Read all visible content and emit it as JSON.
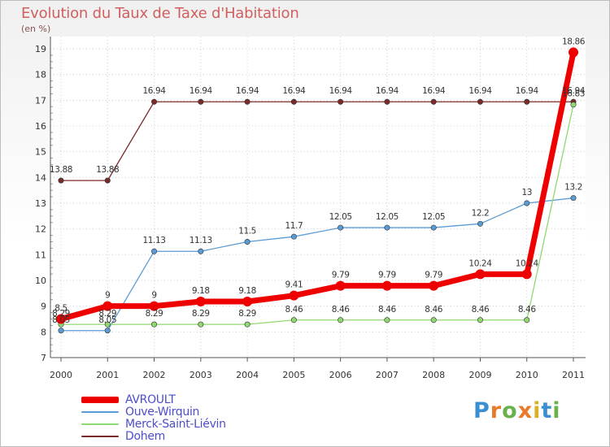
{
  "title": "Evolution du Taux de Taxe d'Habitation",
  "subtitle": "(en %)",
  "logo": "Proxiti",
  "chart_data": {
    "type": "line",
    "x": [
      2000,
      2001,
      2002,
      2003,
      2004,
      2005,
      2006,
      2007,
      2008,
      2009,
      2010,
      2011
    ],
    "ylim": [
      7,
      19
    ],
    "yticks": [
      7,
      8,
      9,
      10,
      11,
      12,
      13,
      14,
      15,
      16,
      17,
      18,
      19
    ],
    "grid": true,
    "legend_position": "bottom-left",
    "series": [
      {
        "name": "Dohem",
        "color": "#7b2b2b",
        "values": [
          13.88,
          13.88,
          16.94,
          16.94,
          16.94,
          16.94,
          16.94,
          16.94,
          16.94,
          16.94,
          16.94,
          16.94
        ],
        "labels": [
          "13.88",
          "13.88",
          "16.94",
          "16.94",
          "16.94",
          "16.94",
          "16.94",
          "16.94",
          "16.94",
          "16.94",
          "16.94",
          "16.94"
        ]
      },
      {
        "name": "Ouve-Wirquin",
        "color": "#5b9bd5",
        "values": [
          8.05,
          8.05,
          11.13,
          11.13,
          11.5,
          11.7,
          12.05,
          12.05,
          12.05,
          12.2,
          13,
          13.2
        ],
        "labels": [
          "8.05",
          "8.05",
          "11.13",
          "11.13",
          "11.5",
          "11.7",
          "12.05",
          "12.05",
          "12.05",
          "12.2",
          "13",
          "13.2"
        ]
      },
      {
        "name": "Merck-Saint-Liévin",
        "color": "#90d870",
        "values": [
          8.29,
          8.29,
          8.29,
          8.29,
          8.29,
          8.46,
          8.46,
          8.46,
          8.46,
          8.46,
          8.46,
          16.83
        ],
        "labels": [
          "8.29",
          "8.29",
          "8.29",
          "8.29",
          "8.29",
          "8.46",
          "8.46",
          "8.46",
          "8.46",
          "8.46",
          "8.46",
          "16.83"
        ]
      },
      {
        "name": "AVROULT",
        "color": "#ee0000",
        "values": [
          8.5,
          9,
          9,
          9.18,
          9.18,
          9.41,
          9.79,
          9.79,
          9.79,
          10.24,
          10.24,
          18.86
        ],
        "labels": [
          "8.5",
          "9",
          "9",
          "9.18",
          "9.18",
          "9.41",
          "9.79",
          "9.79",
          "9.79",
          "10.24",
          "10.24",
          "18.86"
        ]
      }
    ],
    "legend_order": [
      "AVROULT",
      "Ouve-Wirquin",
      "Merck-Saint-Liévin",
      "Dohem"
    ]
  }
}
